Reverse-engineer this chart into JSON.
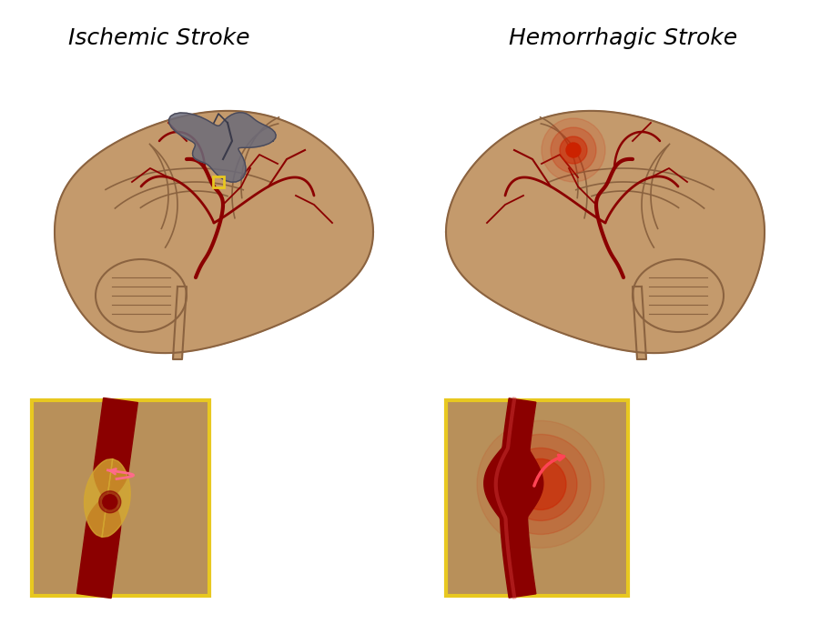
{
  "title_left": "Ischemic Stroke",
  "title_right": "Hemorrhagic Stroke",
  "title_fontsize": 18,
  "title_style": "italic",
  "brain_color": "#C49A6C",
  "brain_dark": "#A67C52",
  "brain_outline": "#8B6340",
  "vessel_color": "#8B0000",
  "vessel_dark": "#5C0000",
  "gray_patch_color": "#6B6B7A",
  "red_spot_color": "#CC2200",
  "yellow_box_color": "#E8C820",
  "box_bg_color": "#B8905A",
  "background_color": "#FFFFFF"
}
